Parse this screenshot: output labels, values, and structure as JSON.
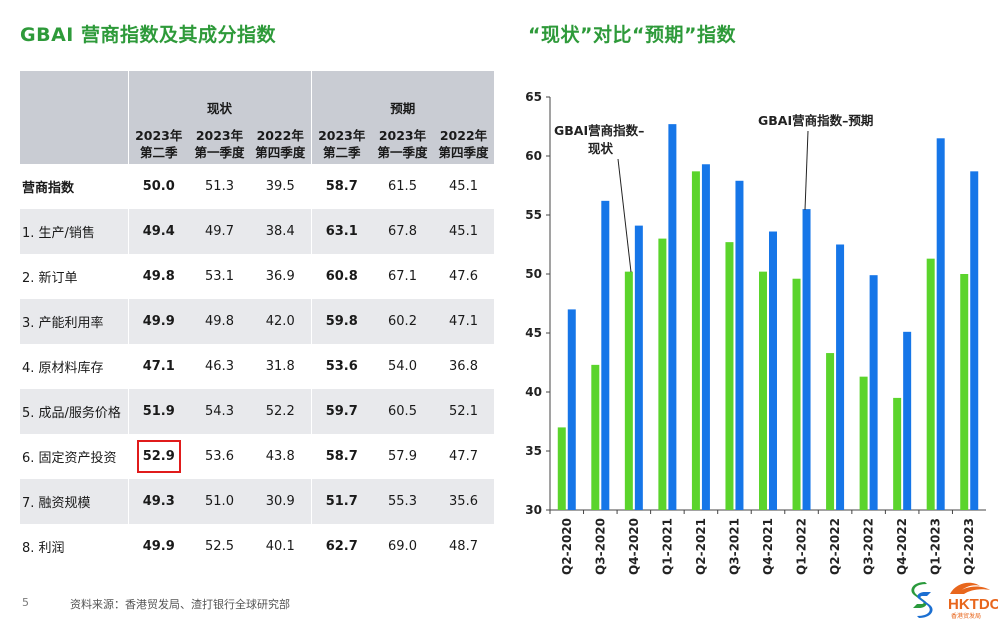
{
  "titles": {
    "left": "GBAI 营商指数及其成分指数",
    "right": "“现状”对比“预期”指数"
  },
  "table": {
    "group_headers": [
      "现状",
      "预期"
    ],
    "year_headers": [
      "2023年",
      "2023年",
      "2022年",
      "2023年",
      "2023年",
      "2022年"
    ],
    "quarter_headers": [
      "第二季",
      "第一季度",
      "第四季度",
      "第二季",
      "第一季度",
      "第四季度"
    ],
    "rows": [
      {
        "label": "营商指数",
        "values": [
          "50.0",
          "51.3",
          "39.5",
          "58.7",
          "61.5",
          "45.1"
        ]
      },
      {
        "label": "1. 生产/销售",
        "values": [
          "49.4",
          "49.7",
          "38.4",
          "63.1",
          "67.8",
          "45.1"
        ]
      },
      {
        "label": "2. 新订单",
        "values": [
          "49.8",
          "53.1",
          "36.9",
          "60.8",
          "67.1",
          "47.6"
        ]
      },
      {
        "label": "3. 产能利用率",
        "values": [
          "49.9",
          "49.8",
          "42.0",
          "59.8",
          "60.2",
          "47.1"
        ]
      },
      {
        "label": "4. 原材料库存",
        "values": [
          "47.1",
          "46.3",
          "31.8",
          "53.6",
          "54.0",
          "36.8"
        ]
      },
      {
        "label": "5. 成品/服务价格",
        "values": [
          "51.9",
          "54.3",
          "52.2",
          "59.7",
          "60.5",
          "52.1"
        ]
      },
      {
        "label": "6. 固定资产投资",
        "values": [
          "52.9",
          "53.6",
          "43.8",
          "58.7",
          "57.9",
          "47.7"
        ]
      },
      {
        "label": "7. 融资规模",
        "values": [
          "49.3",
          "51.0",
          "30.9",
          "51.7",
          "55.3",
          "35.6"
        ]
      },
      {
        "label": "8. 利润",
        "values": [
          "49.9",
          "52.5",
          "40.1",
          "62.7",
          "69.0",
          "48.7"
        ]
      }
    ]
  },
  "chart_data": {
    "type": "bar",
    "title": "“现状”对比“预期”指数",
    "categories": [
      "Q2-2020",
      "Q3-2020",
      "Q4-2020",
      "Q1-2021",
      "Q2-2021",
      "Q3-2021",
      "Q4-2021",
      "Q1-2022",
      "Q2-2022",
      "Q3-2022",
      "Q4-2022",
      "Q1-2023",
      "Q2-2023"
    ],
    "series": [
      {
        "name": "GBAI营商指数–现状",
        "color": "#5bd42c",
        "values": [
          37.0,
          42.3,
          50.2,
          53.0,
          58.7,
          52.7,
          50.2,
          49.6,
          43.3,
          41.3,
          39.5,
          51.3,
          50.0
        ]
      },
      {
        "name": "GBAI营商指数–预期",
        "color": "#1676e8",
        "values": [
          47.0,
          56.2,
          54.1,
          62.7,
          59.3,
          57.9,
          53.6,
          55.5,
          52.5,
          49.9,
          45.1,
          61.5,
          58.7
        ]
      }
    ],
    "ylim": [
      30,
      65
    ],
    "yticks": [
      30,
      35,
      40,
      45,
      50,
      55,
      60,
      65
    ],
    "grid": false,
    "annotations": {
      "current_line1": "GBAI营商指数–",
      "current_line2": "现状",
      "expected": "GBAI营商指数–预期"
    }
  },
  "footer": {
    "page_number": "5",
    "source": "资料来源：香港贸发局、渣打银行全球研究部"
  },
  "logos": {
    "hktdc_text": "HKTDC",
    "hktdc_subtext": "香港贸发局"
  }
}
